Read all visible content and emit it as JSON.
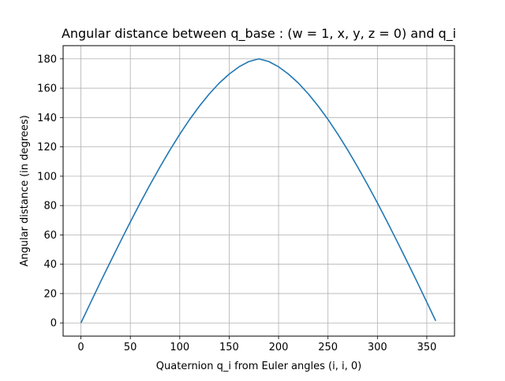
{
  "chart_data": {
    "type": "line",
    "title": "Angular distance between q_base : (w = 1, x, y, z = 0) and q_i",
    "xlabel": "Quaternion q_i from Euler angles (i, i, 0)",
    "ylabel": "Angular distance (in degrees)",
    "xlim": [
      -18,
      378
    ],
    "ylim": [
      -9,
      189
    ],
    "xticks": [
      0,
      50,
      100,
      150,
      200,
      250,
      300,
      350
    ],
    "yticks": [
      0,
      20,
      40,
      60,
      80,
      100,
      120,
      140,
      160,
      180
    ],
    "grid": true,
    "series": [
      {
        "color": "#1f77b4",
        "x": [
          0,
          10,
          20,
          30,
          40,
          50,
          60,
          70,
          80,
          90,
          100,
          110,
          120,
          130,
          140,
          150,
          160,
          170,
          180,
          190,
          200,
          210,
          220,
          230,
          240,
          250,
          260,
          270,
          280,
          290,
          300,
          310,
          320,
          330,
          340,
          350,
          359
        ],
        "y": [
          0,
          14.1,
          28.2,
          41.9,
          55.5,
          68.8,
          81.8,
          94.3,
          106.3,
          117.8,
          128.6,
          138.7,
          147.9,
          156.2,
          163.5,
          169.6,
          174.6,
          178.2,
          180,
          178.2,
          174.6,
          169.6,
          163.5,
          156.2,
          147.9,
          138.7,
          128.6,
          117.8,
          106.3,
          94.3,
          81.8,
          68.8,
          55.5,
          41.9,
          28.2,
          14.1,
          1.4
        ]
      }
    ]
  }
}
